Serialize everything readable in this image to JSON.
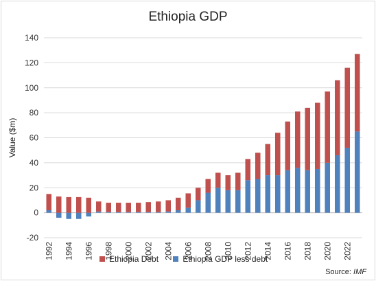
{
  "chart_data": {
    "type": "bar",
    "stacked": true,
    "title": "Ethiopia GDP",
    "xlabel": "",
    "ylabel": "Value ($m)",
    "ylim": [
      -20,
      140
    ],
    "yticks": [
      -20,
      0,
      20,
      40,
      60,
      80,
      100,
      120,
      140
    ],
    "grid": true,
    "legend_position": "bottom",
    "source_label": "Source:",
    "source_name": "IMF",
    "categories": [
      "1992",
      "1993",
      "1994",
      "1995",
      "1996",
      "1997",
      "1998",
      "1999",
      "2000",
      "2001",
      "2002",
      "2003",
      "2004",
      "2005",
      "2006",
      "2007",
      "2008",
      "2009",
      "2010",
      "2011",
      "2012",
      "2013",
      "2014",
      "2015",
      "2016",
      "2017",
      "2018",
      "2019",
      "2020",
      "2021",
      "2022",
      "2023"
    ],
    "xtick_labels": [
      "1992",
      "1994",
      "1996",
      "1998",
      "2000",
      "2002",
      "2004",
      "2006",
      "2008",
      "2010",
      "2012",
      "2014",
      "2016",
      "2018",
      "2020",
      "2022"
    ],
    "series": [
      {
        "name": "Ethiopia GDP less debt",
        "color": "#4f81bd",
        "values": [
          2,
          -4,
          -5,
          -5,
          -3,
          1,
          0.5,
          0.5,
          0.5,
          0.5,
          0.5,
          0.5,
          1,
          2,
          4,
          10,
          16,
          20,
          18,
          18,
          26,
          27,
          30,
          30,
          34,
          36,
          34,
          35,
          40,
          46,
          52,
          65
        ]
      },
      {
        "name": "Ethiopia Debt",
        "color": "#c0504d",
        "values": [
          13,
          13,
          12.5,
          12.5,
          12,
          8,
          7.5,
          7.5,
          7.5,
          7.5,
          8,
          8.5,
          9,
          10,
          11.5,
          10,
          11,
          12,
          12,
          14,
          17,
          21,
          25,
          34,
          39,
          45,
          50,
          53,
          57,
          60,
          64,
          62
        ]
      }
    ]
  }
}
